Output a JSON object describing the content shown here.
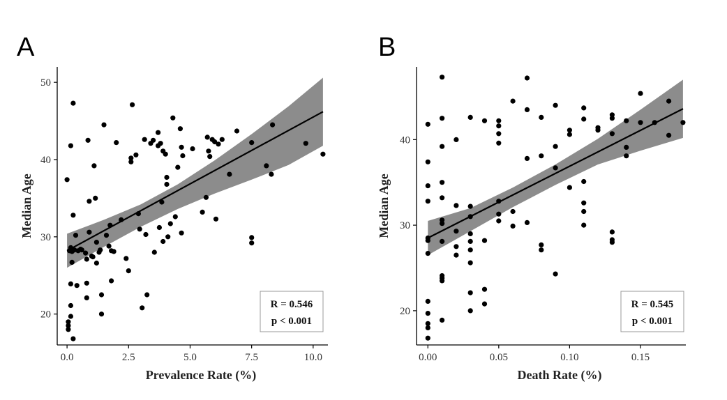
{
  "chart_data": [
    {
      "type": "scatter",
      "panel_label": "A",
      "xlabel": "Prevalence Rate (%)",
      "ylabel": "Median Age",
      "xlim": [
        -0.4,
        10.6
      ],
      "ylim": [
        16,
        52
      ],
      "x_ticks": [
        0,
        2.5,
        5,
        7.5,
        10
      ],
      "x_tick_labels": [
        "0.0",
        "2.5",
        "5.0",
        "7.5",
        "10.0"
      ],
      "y_ticks": [
        20,
        30,
        40,
        50
      ],
      "y_tick_labels": [
        "20",
        "30",
        "40",
        "50"
      ],
      "annotation": {
        "r_text": "R = 0.546",
        "p_text": "p < 0.001"
      },
      "fit_line": {
        "x": [
          0,
          10.4
        ],
        "y": [
          28.2,
          46.2
        ]
      },
      "confidence_band": {
        "x": [
          0,
          1.5,
          3,
          4.5,
          6,
          7.5,
          9,
          10.4
        ],
        "lower": [
          26.0,
          28.7,
          31.3,
          33.6,
          35.6,
          37.4,
          39.3,
          41.8
        ],
        "upper": [
          30.4,
          32.2,
          34.2,
          36.8,
          39.9,
          43.3,
          46.9,
          50.6
        ]
      },
      "points": [
        {
          "x": 0.0,
          "y": 37.4
        },
        {
          "x": 0.05,
          "y": 19.0
        },
        {
          "x": 0.05,
          "y": 18.5
        },
        {
          "x": 0.05,
          "y": 18.0
        },
        {
          "x": 0.1,
          "y": 28.2
        },
        {
          "x": 0.15,
          "y": 28.6
        },
        {
          "x": 0.15,
          "y": 41.8
        },
        {
          "x": 0.15,
          "y": 23.9
        },
        {
          "x": 0.15,
          "y": 21.1
        },
        {
          "x": 0.15,
          "y": 19.7
        },
        {
          "x": 0.2,
          "y": 28.1
        },
        {
          "x": 0.2,
          "y": 26.7
        },
        {
          "x": 0.25,
          "y": 32.8
        },
        {
          "x": 0.25,
          "y": 16.8
        },
        {
          "x": 0.25,
          "y": 47.3
        },
        {
          "x": 0.3,
          "y": 28.3
        },
        {
          "x": 0.35,
          "y": 30.2
        },
        {
          "x": 0.4,
          "y": 23.7
        },
        {
          "x": 0.45,
          "y": 28.2
        },
        {
          "x": 0.55,
          "y": 28.4
        },
        {
          "x": 0.6,
          "y": 28.3
        },
        {
          "x": 0.75,
          "y": 27.9
        },
        {
          "x": 0.8,
          "y": 24.0
        },
        {
          "x": 0.8,
          "y": 22.1
        },
        {
          "x": 0.8,
          "y": 27.1
        },
        {
          "x": 0.85,
          "y": 42.5
        },
        {
          "x": 0.9,
          "y": 34.6
        },
        {
          "x": 0.9,
          "y": 30.6
        },
        {
          "x": 1.0,
          "y": 27.5
        },
        {
          "x": 1.05,
          "y": 27.4
        },
        {
          "x": 1.1,
          "y": 39.2
        },
        {
          "x": 1.15,
          "y": 35.0
        },
        {
          "x": 1.2,
          "y": 29.3
        },
        {
          "x": 1.2,
          "y": 26.6
        },
        {
          "x": 1.3,
          "y": 28.0
        },
        {
          "x": 1.35,
          "y": 28.3
        },
        {
          "x": 1.4,
          "y": 22.5
        },
        {
          "x": 1.4,
          "y": 20.0
        },
        {
          "x": 1.5,
          "y": 44.5
        },
        {
          "x": 1.6,
          "y": 30.2
        },
        {
          "x": 1.7,
          "y": 28.8
        },
        {
          "x": 1.75,
          "y": 31.5
        },
        {
          "x": 1.8,
          "y": 28.2
        },
        {
          "x": 1.8,
          "y": 24.3
        },
        {
          "x": 1.9,
          "y": 28.1
        },
        {
          "x": 2.0,
          "y": 42.2
        },
        {
          "x": 2.2,
          "y": 32.2
        },
        {
          "x": 2.4,
          "y": 27.2
        },
        {
          "x": 2.5,
          "y": 25.6
        },
        {
          "x": 2.6,
          "y": 39.7
        },
        {
          "x": 2.6,
          "y": 40.2
        },
        {
          "x": 2.65,
          "y": 47.1
        },
        {
          "x": 2.8,
          "y": 40.6
        },
        {
          "x": 2.9,
          "y": 33.0
        },
        {
          "x": 2.95,
          "y": 31.0
        },
        {
          "x": 3.05,
          "y": 20.8
        },
        {
          "x": 3.15,
          "y": 42.6
        },
        {
          "x": 3.2,
          "y": 30.3
        },
        {
          "x": 3.25,
          "y": 22.5
        },
        {
          "x": 3.4,
          "y": 42.1
        },
        {
          "x": 3.5,
          "y": 42.5
        },
        {
          "x": 3.55,
          "y": 28.0
        },
        {
          "x": 3.7,
          "y": 43.5
        },
        {
          "x": 3.7,
          "y": 41.8
        },
        {
          "x": 3.75,
          "y": 31.2
        },
        {
          "x": 3.8,
          "y": 42.1
        },
        {
          "x": 3.85,
          "y": 34.5
        },
        {
          "x": 3.9,
          "y": 41.1
        },
        {
          "x": 3.9,
          "y": 29.4
        },
        {
          "x": 4.0,
          "y": 40.7
        },
        {
          "x": 4.05,
          "y": 37.7
        },
        {
          "x": 4.05,
          "y": 36.8
        },
        {
          "x": 4.1,
          "y": 30.0
        },
        {
          "x": 4.2,
          "y": 31.7
        },
        {
          "x": 4.3,
          "y": 45.4
        },
        {
          "x": 4.4,
          "y": 32.6
        },
        {
          "x": 4.5,
          "y": 39.0
        },
        {
          "x": 4.6,
          "y": 44.0
        },
        {
          "x": 4.65,
          "y": 41.6
        },
        {
          "x": 4.65,
          "y": 30.5
        },
        {
          "x": 4.7,
          "y": 40.5
        },
        {
          "x": 5.1,
          "y": 41.4
        },
        {
          "x": 5.5,
          "y": 33.2
        },
        {
          "x": 5.65,
          "y": 35.1
        },
        {
          "x": 5.7,
          "y": 42.9
        },
        {
          "x": 5.75,
          "y": 41.1
        },
        {
          "x": 5.8,
          "y": 40.4
        },
        {
          "x": 5.9,
          "y": 42.6
        },
        {
          "x": 6.0,
          "y": 42.3
        },
        {
          "x": 6.05,
          "y": 32.3
        },
        {
          "x": 6.15,
          "y": 42.0
        },
        {
          "x": 6.3,
          "y": 42.6
        },
        {
          "x": 6.6,
          "y": 38.1
        },
        {
          "x": 6.9,
          "y": 43.7
        },
        {
          "x": 7.5,
          "y": 29.9
        },
        {
          "x": 7.5,
          "y": 29.2
        },
        {
          "x": 7.5,
          "y": 42.2
        },
        {
          "x": 8.1,
          "y": 39.2
        },
        {
          "x": 8.3,
          "y": 38.1
        },
        {
          "x": 8.35,
          "y": 44.5
        },
        {
          "x": 9.7,
          "y": 42.1
        },
        {
          "x": 10.4,
          "y": 40.7
        }
      ]
    },
    {
      "type": "scatter",
      "panel_label": "B",
      "xlabel": "Death Rate (%)",
      "ylabel": "Median Age",
      "xlim": [
        -0.008,
        0.182
      ],
      "ylim": [
        16,
        48.5
      ],
      "x_ticks": [
        0,
        0.05,
        0.1,
        0.15
      ],
      "x_tick_labels": [
        "0.00",
        "0.05",
        "0.10",
        "0.15"
      ],
      "y_ticks": [
        20,
        30,
        40
      ],
      "y_tick_labels": [
        "20",
        "30",
        "40"
      ],
      "annotation": {
        "r_text": "R = 0.545",
        "p_text": "p < 0.001"
      },
      "fit_line": {
        "x": [
          0,
          0.18
        ],
        "y": [
          28.5,
          43.6
        ]
      },
      "confidence_band": {
        "x": [
          0,
          0.03,
          0.06,
          0.09,
          0.12,
          0.15,
          0.18
        ],
        "lower": [
          26.5,
          29.3,
          32.1,
          34.7,
          37.1,
          38.7,
          40.2
        ],
        "upper": [
          30.5,
          32.0,
          34.4,
          37.1,
          40.1,
          43.5,
          47.0
        ]
      },
      "points": [
        {
          "x": 0.0,
          "y": 41.8
        },
        {
          "x": 0.0,
          "y": 37.4
        },
        {
          "x": 0.0,
          "y": 34.6
        },
        {
          "x": 0.0,
          "y": 32.8
        },
        {
          "x": 0.0,
          "y": 28.5
        },
        {
          "x": 0.0,
          "y": 28.2
        },
        {
          "x": 0.0,
          "y": 26.7
        },
        {
          "x": 0.0,
          "y": 21.1
        },
        {
          "x": 0.0,
          "y": 19.7
        },
        {
          "x": 0.0,
          "y": 18.5
        },
        {
          "x": 0.0,
          "y": 18.0
        },
        {
          "x": 0.0,
          "y": 16.8
        },
        {
          "x": 0.01,
          "y": 47.3
        },
        {
          "x": 0.01,
          "y": 42.5
        },
        {
          "x": 0.01,
          "y": 39.2
        },
        {
          "x": 0.01,
          "y": 35.0
        },
        {
          "x": 0.01,
          "y": 33.2
        },
        {
          "x": 0.01,
          "y": 30.6
        },
        {
          "x": 0.01,
          "y": 30.2
        },
        {
          "x": 0.01,
          "y": 28.1
        },
        {
          "x": 0.01,
          "y": 24.1
        },
        {
          "x": 0.01,
          "y": 23.8
        },
        {
          "x": 0.01,
          "y": 23.5
        },
        {
          "x": 0.01,
          "y": 18.9
        },
        {
          "x": 0.02,
          "y": 40.0
        },
        {
          "x": 0.02,
          "y": 32.3
        },
        {
          "x": 0.02,
          "y": 29.3
        },
        {
          "x": 0.02,
          "y": 27.5
        },
        {
          "x": 0.02,
          "y": 26.5
        },
        {
          "x": 0.03,
          "y": 42.6
        },
        {
          "x": 0.03,
          "y": 32.2
        },
        {
          "x": 0.03,
          "y": 31.0
        },
        {
          "x": 0.03,
          "y": 29.0
        },
        {
          "x": 0.03,
          "y": 28.1
        },
        {
          "x": 0.03,
          "y": 27.1
        },
        {
          "x": 0.03,
          "y": 25.6
        },
        {
          "x": 0.03,
          "y": 22.1
        },
        {
          "x": 0.03,
          "y": 20.0
        },
        {
          "x": 0.04,
          "y": 42.2
        },
        {
          "x": 0.04,
          "y": 28.2
        },
        {
          "x": 0.04,
          "y": 22.5
        },
        {
          "x": 0.04,
          "y": 20.8
        },
        {
          "x": 0.05,
          "y": 42.2
        },
        {
          "x": 0.05,
          "y": 41.6
        },
        {
          "x": 0.05,
          "y": 40.7
        },
        {
          "x": 0.05,
          "y": 39.6
        },
        {
          "x": 0.05,
          "y": 32.8
        },
        {
          "x": 0.05,
          "y": 31.3
        },
        {
          "x": 0.05,
          "y": 30.5
        },
        {
          "x": 0.06,
          "y": 44.5
        },
        {
          "x": 0.06,
          "y": 31.6
        },
        {
          "x": 0.06,
          "y": 29.9
        },
        {
          "x": 0.07,
          "y": 47.2
        },
        {
          "x": 0.07,
          "y": 43.5
        },
        {
          "x": 0.07,
          "y": 37.8
        },
        {
          "x": 0.07,
          "y": 30.3
        },
        {
          "x": 0.08,
          "y": 42.6
        },
        {
          "x": 0.08,
          "y": 38.1
        },
        {
          "x": 0.08,
          "y": 27.7
        },
        {
          "x": 0.08,
          "y": 27.1
        },
        {
          "x": 0.09,
          "y": 44.0
        },
        {
          "x": 0.09,
          "y": 39.2
        },
        {
          "x": 0.09,
          "y": 36.7
        },
        {
          "x": 0.09,
          "y": 24.3
        },
        {
          "x": 0.1,
          "y": 41.1
        },
        {
          "x": 0.1,
          "y": 40.6
        },
        {
          "x": 0.1,
          "y": 34.4
        },
        {
          "x": 0.11,
          "y": 43.7
        },
        {
          "x": 0.11,
          "y": 42.4
        },
        {
          "x": 0.11,
          "y": 35.1
        },
        {
          "x": 0.11,
          "y": 32.6
        },
        {
          "x": 0.11,
          "y": 31.6
        },
        {
          "x": 0.11,
          "y": 30.0
        },
        {
          "x": 0.12,
          "y": 41.4
        },
        {
          "x": 0.12,
          "y": 41.1
        },
        {
          "x": 0.13,
          "y": 42.9
        },
        {
          "x": 0.13,
          "y": 42.5
        },
        {
          "x": 0.13,
          "y": 40.7
        },
        {
          "x": 0.13,
          "y": 29.2
        },
        {
          "x": 0.13,
          "y": 28.3
        },
        {
          "x": 0.13,
          "y": 28.0
        },
        {
          "x": 0.14,
          "y": 42.2
        },
        {
          "x": 0.14,
          "y": 39.1
        },
        {
          "x": 0.14,
          "y": 38.1
        },
        {
          "x": 0.15,
          "y": 45.4
        },
        {
          "x": 0.15,
          "y": 42.0
        },
        {
          "x": 0.16,
          "y": 42.0
        },
        {
          "x": 0.17,
          "y": 44.5
        },
        {
          "x": 0.17,
          "y": 40.5
        },
        {
          "x": 0.18,
          "y": 42.0
        }
      ]
    }
  ]
}
